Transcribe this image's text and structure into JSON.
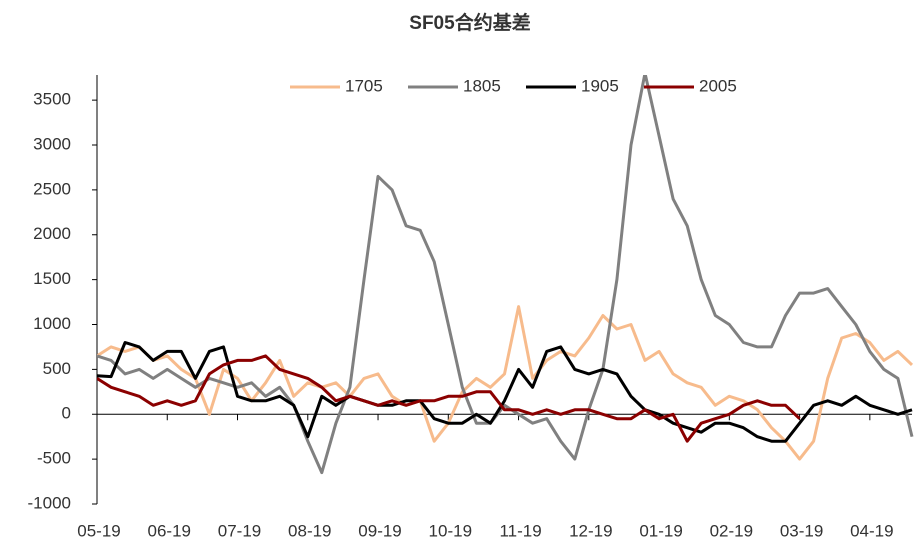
{
  "chart_data": {
    "type": "line",
    "title": "SF05合约基差",
    "categories": [
      "05-19",
      null,
      null,
      null,
      null,
      "06-19",
      null,
      null,
      null,
      null,
      "07-19",
      null,
      null,
      null,
      null,
      "08-19",
      null,
      null,
      null,
      null,
      "09-19",
      null,
      null,
      null,
      null,
      "10-19",
      null,
      null,
      null,
      null,
      "11-19",
      null,
      null,
      null,
      null,
      "12-19",
      null,
      null,
      null,
      null,
      "01-19",
      null,
      null,
      null,
      null,
      "02-19",
      null,
      null,
      null,
      null,
      "03-19",
      null,
      null,
      null,
      null,
      "04-19",
      null,
      null,
      null
    ],
    "series": [
      {
        "name": "1705",
        "color": "#f7bb8c",
        "values": [
          650,
          750,
          700,
          750,
          600,
          650,
          500,
          400,
          0,
          500,
          400,
          150,
          350,
          600,
          200,
          350,
          300,
          350,
          200,
          400,
          450,
          200,
          100,
          150,
          -300,
          -100,
          250,
          400,
          300,
          450,
          1200,
          400,
          600,
          700,
          650,
          850,
          1100,
          950,
          1000,
          600,
          700,
          450,
          350,
          300,
          100,
          200,
          150,
          50,
          -150,
          -300,
          -500,
          -300,
          400,
          850,
          900,
          800,
          600,
          700,
          550
        ]
      },
      {
        "name": "1805",
        "color": "#808080",
        "values": [
          650,
          600,
          450,
          500,
          400,
          500,
          400,
          300,
          400,
          350,
          300,
          350,
          200,
          300,
          100,
          -300,
          -650,
          -100,
          300,
          1500,
          2650,
          2500,
          2100,
          2050,
          1700,
          1000,
          300,
          -100,
          -100,
          100,
          0,
          -100,
          -50,
          -300,
          -500,
          50,
          500,
          1500,
          3000,
          3800,
          3100,
          2400,
          2100,
          1500,
          1100,
          1000,
          800,
          750,
          750,
          1100,
          1350,
          1350,
          1400,
          1200,
          1000,
          700,
          500,
          400,
          -250
        ]
      },
      {
        "name": "1905",
        "color": "#000000",
        "values": [
          430,
          420,
          800,
          750,
          600,
          700,
          700,
          400,
          700,
          750,
          200,
          150,
          150,
          200,
          100,
          -250,
          200,
          100,
          200,
          150,
          100,
          100,
          150,
          150,
          -50,
          -100,
          -100,
          0,
          -100,
          150,
          500,
          300,
          700,
          750,
          500,
          450,
          500,
          450,
          200,
          50,
          0,
          -100,
          -150,
          -200,
          -100,
          -100,
          -150,
          -250,
          -300,
          -300,
          -100,
          100,
          150,
          100,
          200,
          100,
          50,
          0,
          50
        ]
      },
      {
        "name": "2005",
        "color": "#8b0000",
        "values": [
          400,
          300,
          250,
          200,
          100,
          150,
          100,
          150,
          450,
          550,
          600,
          600,
          650,
          500,
          450,
          400,
          300,
          150,
          200,
          150,
          100,
          150,
          100,
          150,
          150,
          200,
          200,
          250,
          250,
          50,
          50,
          0,
          50,
          0,
          50,
          50,
          0,
          -50,
          -50,
          50,
          -50,
          0,
          -300,
          -100,
          -50,
          0,
          100,
          150,
          100,
          100,
          -50,
          null,
          null,
          null,
          null,
          null,
          null,
          null,
          null
        ]
      }
    ],
    "ylim": [
      -1000,
      3780
    ],
    "yticks": [
      -1000,
      -500,
      0,
      500,
      1000,
      1500,
      2000,
      2500,
      3000,
      3500
    ],
    "legend": "top"
  }
}
